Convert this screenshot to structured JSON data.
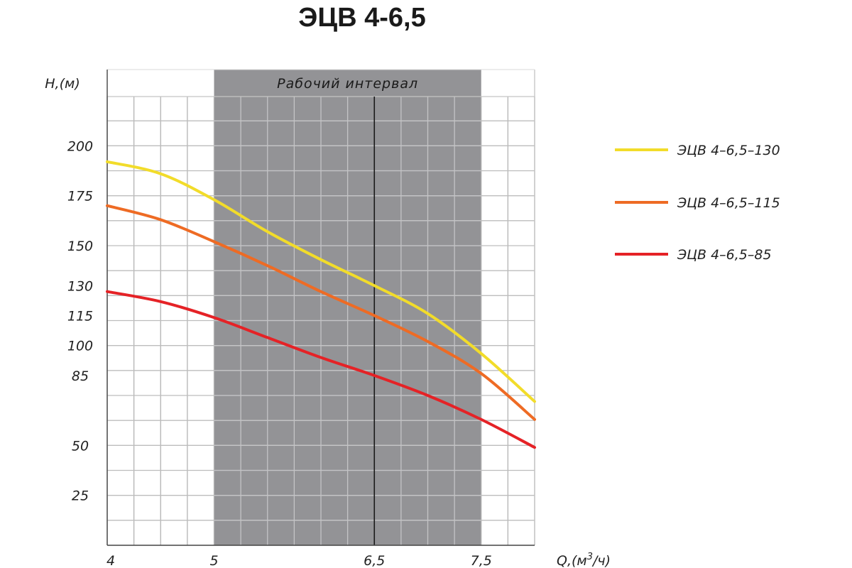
{
  "chart_data": {
    "type": "line",
    "title": "ЭЦВ 4-6,5",
    "ylabel": "Н,(м)",
    "xlabel_main": "Q,(м",
    "xlabel_sup": "3",
    "xlabel_tail": "/ч)",
    "working_interval_label": "Рабочий интервал",
    "working_interval": [
      5,
      7.5
    ],
    "y_ticks": [
      {
        "label": "200",
        "value": 200
      },
      {
        "label": "175",
        "value": 175
      },
      {
        "label": "150",
        "value": 150
      },
      {
        "label": "130",
        "value": 130
      },
      {
        "label": "115",
        "value": 115
      },
      {
        "label": "100",
        "value": 100
      },
      {
        "label": "85",
        "value": 85
      },
      {
        "label": "50",
        "value": 50
      },
      {
        "label": "25",
        "value": 25
      }
    ],
    "x_ticks": [
      {
        "label": "4",
        "value": 4
      },
      {
        "label": "5",
        "value": 5
      },
      {
        "label": "6,5",
        "value": 6.5
      },
      {
        "label": "7,5",
        "value": 7.5
      }
    ],
    "xlim": [
      4,
      8
    ],
    "ylim": [
      0,
      225
    ],
    "grid": true,
    "legend_position": "right",
    "series": [
      {
        "name": "ЭЦВ 4–6,5–130",
        "color": "#f2dc2a",
        "x": [
          4,
          4.5,
          5,
          5.5,
          6,
          6.5,
          7,
          7.5,
          8
        ],
        "y": [
          192,
          186,
          173,
          157,
          143,
          130,
          116,
          96,
          72
        ]
      },
      {
        "name": "ЭЦВ 4–6,5–115",
        "color": "#ee6b24",
        "x": [
          4,
          4.5,
          5,
          5.5,
          6,
          6.5,
          7,
          7.5,
          8
        ],
        "y": [
          170,
          163,
          152,
          140,
          127,
          115,
          102,
          86,
          63
        ]
      },
      {
        "name": "ЭЦВ 4–6,5–85",
        "color": "#e52226",
        "x": [
          4,
          4.5,
          5,
          5.5,
          6,
          6.5,
          7,
          7.5,
          8
        ],
        "y": [
          127,
          122,
          114,
          104,
          94,
          85,
          75,
          63,
          49
        ]
      }
    ]
  }
}
